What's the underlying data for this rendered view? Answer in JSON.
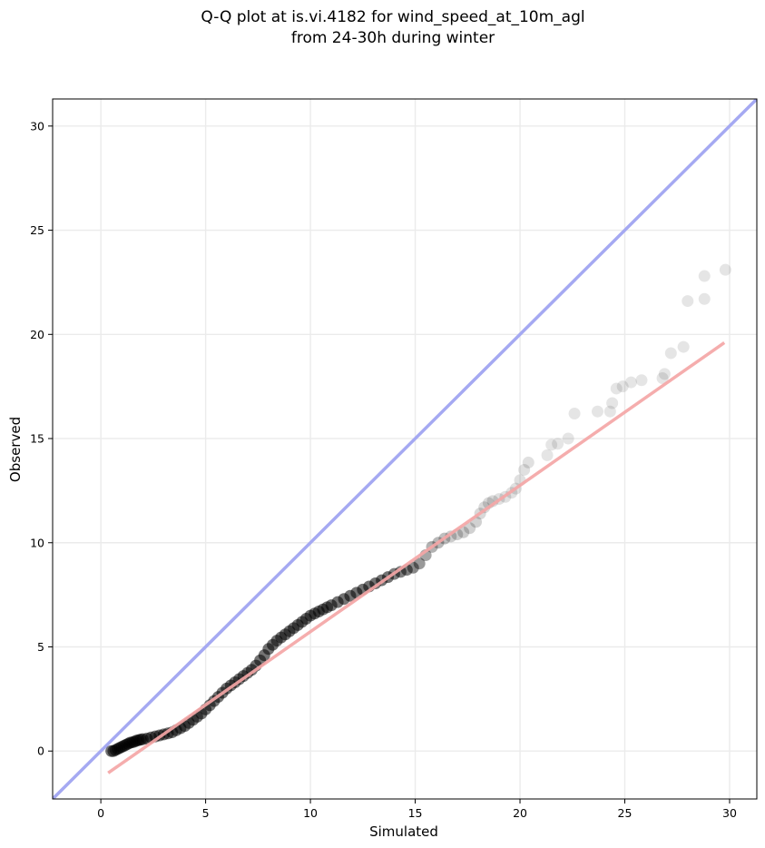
{
  "chart_data": {
    "type": "scatter",
    "title_lines": [
      "Q-Q plot at is.vi.4182 for wind_speed_at_10m_agl",
      "from 24-30h during winter"
    ],
    "xlabel": "Simulated",
    "ylabel": "Observed",
    "xlim": [
      -2.3,
      31.3
    ],
    "ylim": [
      -2.3,
      31.3
    ],
    "xticks": [
      0,
      5,
      10,
      15,
      20,
      25,
      30
    ],
    "yticks": [
      0,
      5,
      10,
      15,
      20,
      25,
      30
    ],
    "grid": true,
    "colors": {
      "points": "#000000",
      "identity_line": "#a5a9f2",
      "fit_line": "#f4a6a6",
      "frame": "#000000",
      "grid": "#ebebeb"
    },
    "identity_line": {
      "from": [
        -2.3,
        -2.3
      ],
      "to": [
        31.3,
        31.3
      ]
    },
    "fit_line": {
      "from": [
        0.35,
        -1.05
      ],
      "to": [
        29.75,
        19.6
      ]
    },
    "series": [
      {
        "x": [
          0.5,
          0.6,
          0.7,
          0.8,
          0.9,
          1.0,
          1.1,
          1.2,
          1.3,
          1.4,
          1.5,
          1.6,
          1.7,
          1.8,
          1.9,
          2.0,
          2.2,
          2.4,
          2.6,
          2.8,
          3.0,
          3.2,
          3.4,
          3.6,
          3.8,
          4.0,
          4.2,
          4.4,
          4.6,
          4.8,
          5.0,
          5.2,
          5.4,
          5.6,
          5.8,
          6.0,
          6.2,
          6.4,
          6.6,
          6.8,
          7.0,
          7.2,
          7.4,
          7.6,
          7.8,
          8.0,
          8.2,
          8.4,
          8.6,
          8.8,
          9.0,
          9.2,
          9.4,
          9.6,
          9.8,
          10.0,
          10.2,
          10.4,
          10.6,
          10.8,
          11.0,
          11.3,
          11.6,
          11.9,
          12.2,
          12.5,
          12.8,
          13.1,
          13.4,
          13.7,
          14.0,
          14.3,
          14.6,
          14.9,
          15.2,
          15.5,
          15.8,
          16.1,
          16.4,
          16.7,
          17.0,
          17.3,
          17.6,
          17.9,
          18.1,
          18.3,
          18.5,
          18.7,
          19.0,
          19.3,
          19.6,
          19.8,
          20.0,
          20.2,
          20.4,
          21.3,
          21.5,
          21.8,
          22.3,
          22.6,
          23.7,
          24.3,
          24.4,
          24.6,
          24.9,
          25.3,
          25.8,
          26.8,
          26.9,
          27.2,
          27.8,
          28.0,
          28.8,
          28.8,
          29.8
        ],
        "y": [
          0.0,
          0.0,
          0.05,
          0.1,
          0.15,
          0.2,
          0.25,
          0.3,
          0.35,
          0.4,
          0.42,
          0.45,
          0.5,
          0.52,
          0.55,
          0.57,
          0.6,
          0.65,
          0.7,
          0.75,
          0.8,
          0.85,
          0.9,
          1.0,
          1.1,
          1.2,
          1.35,
          1.5,
          1.65,
          1.8,
          2.0,
          2.2,
          2.4,
          2.6,
          2.8,
          3.0,
          3.15,
          3.3,
          3.45,
          3.6,
          3.75,
          3.9,
          4.1,
          4.35,
          4.6,
          4.9,
          5.1,
          5.3,
          5.45,
          5.6,
          5.75,
          5.9,
          6.05,
          6.2,
          6.35,
          6.5,
          6.6,
          6.7,
          6.8,
          6.9,
          7.0,
          7.15,
          7.3,
          7.45,
          7.6,
          7.75,
          7.9,
          8.05,
          8.2,
          8.35,
          8.5,
          8.6,
          8.7,
          8.8,
          9.0,
          9.4,
          9.8,
          10.0,
          10.2,
          10.3,
          10.4,
          10.5,
          10.7,
          11.0,
          11.4,
          11.7,
          11.9,
          12.0,
          12.1,
          12.2,
          12.4,
          12.6,
          13.0,
          13.5,
          13.85,
          14.2,
          14.7,
          14.75,
          15.0,
          16.2,
          16.3,
          16.3,
          16.7,
          17.4,
          17.5,
          17.7,
          17.8,
          17.9,
          18.1,
          19.1,
          19.4,
          21.6,
          21.7,
          22.8,
          23.1
        ],
        "alpha": [
          0.55,
          0.55,
          0.55,
          0.55,
          0.55,
          0.55,
          0.55,
          0.55,
          0.55,
          0.55,
          0.55,
          0.55,
          0.55,
          0.55,
          0.55,
          0.55,
          0.55,
          0.55,
          0.55,
          0.55,
          0.55,
          0.55,
          0.55,
          0.55,
          0.55,
          0.55,
          0.55,
          0.55,
          0.55,
          0.55,
          0.55,
          0.55,
          0.55,
          0.55,
          0.55,
          0.55,
          0.55,
          0.55,
          0.55,
          0.55,
          0.55,
          0.55,
          0.55,
          0.55,
          0.55,
          0.55,
          0.55,
          0.55,
          0.55,
          0.55,
          0.55,
          0.55,
          0.55,
          0.55,
          0.55,
          0.55,
          0.55,
          0.55,
          0.55,
          0.55,
          0.55,
          0.55,
          0.55,
          0.55,
          0.55,
          0.55,
          0.55,
          0.55,
          0.55,
          0.55,
          0.5,
          0.5,
          0.5,
          0.45,
          0.4,
          0.35,
          0.3,
          0.28,
          0.25,
          0.2,
          0.2,
          0.2,
          0.18,
          0.18,
          0.15,
          0.15,
          0.15,
          0.15,
          0.12,
          0.12,
          0.12,
          0.12,
          0.12,
          0.12,
          0.12,
          0.1,
          0.1,
          0.1,
          0.1,
          0.1,
          0.1,
          0.1,
          0.1,
          0.1,
          0.1,
          0.1,
          0.1,
          0.1,
          0.1,
          0.1,
          0.1,
          0.1,
          0.1,
          0.1,
          0.1
        ]
      }
    ]
  }
}
